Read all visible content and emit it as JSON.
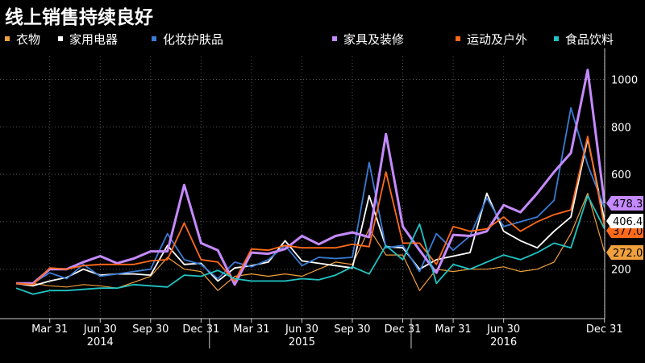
{
  "header": {
    "title": "线上销售持续良好"
  },
  "chart_data": {
    "type": "line",
    "title": "线上销售持续良好",
    "xlabel": "",
    "ylabel": "",
    "x_ticks": [
      "Mar 31",
      "Jun 30",
      "Sep 30",
      "Dec 31",
      "Mar 31",
      "Jun 30",
      "Sep 30",
      "Dec 31",
      "Mar 31",
      "Jun 30",
      "Dec 31"
    ],
    "x_tick_months": [
      2,
      5,
      8,
      11,
      14,
      17,
      20,
      23,
      26,
      29,
      35
    ],
    "years": [
      {
        "label": "2014",
        "month": 5
      },
      {
        "label": "2015",
        "month": 17
      },
      {
        "label": "2016",
        "month": 29
      }
    ],
    "xlim": [
      0,
      36
    ],
    "ylim": [
      0,
      1100
    ],
    "y_ticks": [
      200,
      400,
      600,
      800,
      1000
    ],
    "y_axis_side": "right",
    "grid": true,
    "legend_position": "top",
    "end_labels": [
      {
        "text": "478.3",
        "color": "#c58aff",
        "value": 478.3
      },
      {
        "text": "406.4",
        "color": "#ffffff",
        "value": 406.4
      },
      {
        "text": "377.0",
        "color": "#ff6a1a",
        "value": 377.0
      },
      {
        "text": "272.0",
        "color": "#f0a03c",
        "value": 272.0
      }
    ],
    "series": [
      {
        "name": "衣物",
        "color": "#f0a03c",
        "width": 1.2,
        "values": [
          140,
          140,
          130,
          125,
          135,
          130,
          120,
          145,
          170,
          250,
          200,
          190,
          110,
          170,
          180,
          170,
          180,
          170,
          200,
          230,
          220,
          370,
          260,
          260,
          110,
          200,
          190,
          200,
          200,
          210,
          190,
          200,
          230,
          350,
          520,
          272
        ]
      },
      {
        "name": "家用电器",
        "color": "#ffffff",
        "width": 1.8,
        "values": [
          140,
          130,
          150,
          165,
          200,
          175,
          180,
          180,
          175,
          300,
          220,
          225,
          150,
          205,
          215,
          230,
          320,
          235,
          225,
          215,
          205,
          510,
          295,
          290,
          200,
          240,
          255,
          270,
          520,
          360,
          320,
          290,
          360,
          420,
          750,
          406.4
        ]
      },
      {
        "name": "化妆护肤品",
        "color": "#3a7bd5",
        "width": 1.8,
        "values": [
          140,
          140,
          185,
          160,
          220,
          170,
          180,
          190,
          200,
          350,
          240,
          220,
          160,
          230,
          210,
          240,
          300,
          215,
          250,
          245,
          250,
          650,
          290,
          300,
          190,
          350,
          280,
          340,
          500,
          380,
          400,
          420,
          490,
          880,
          640,
          460
        ]
      },
      {
        "name": "家具及装修",
        "color": "#c58aff",
        "width": 3,
        "values": [
          140,
          140,
          200,
          200,
          230,
          255,
          225,
          245,
          275,
          275,
          555,
          310,
          280,
          135,
          270,
          265,
          285,
          340,
          305,
          340,
          355,
          335,
          770,
          380,
          280,
          185,
          345,
          340,
          360,
          470,
          440,
          520,
          610,
          690,
          1040,
          478.3
        ]
      },
      {
        "name": "运动及户外",
        "color": "#ff6a1a",
        "width": 1.8,
        "values": [
          140,
          135,
          205,
          200,
          215,
          220,
          220,
          220,
          235,
          240,
          395,
          240,
          230,
          150,
          285,
          280,
          300,
          290,
          290,
          290,
          305,
          295,
          610,
          310,
          310,
          220,
          380,
          360,
          370,
          420,
          360,
          400,
          430,
          450,
          760,
          377.0
        ]
      },
      {
        "name": "食品饮料",
        "color": "#20c4c4",
        "width": 1.8,
        "values": [
          120,
          95,
          110,
          110,
          115,
          120,
          120,
          135,
          130,
          125,
          175,
          170,
          195,
          160,
          150,
          150,
          150,
          160,
          155,
          175,
          210,
          180,
          300,
          240,
          390,
          140,
          220,
          200,
          230,
          260,
          240,
          270,
          310,
          290,
          510,
          370
        ]
      }
    ]
  }
}
